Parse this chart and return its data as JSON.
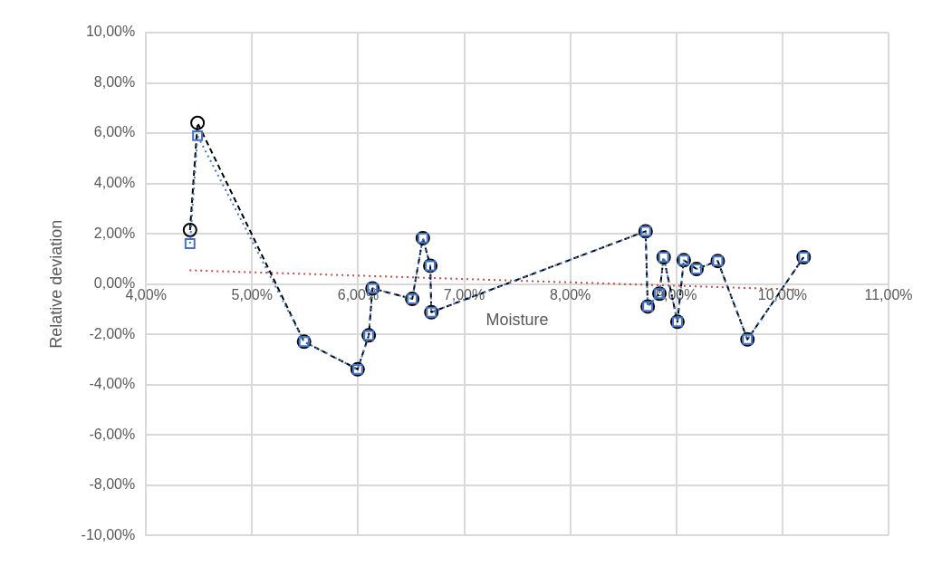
{
  "chart_data": {
    "type": "line",
    "xlabel": "Moisture",
    "ylabel": "Relative deviation",
    "grid": true,
    "legend": false,
    "x": [
      4.415,
      4.486,
      5.49,
      5.995,
      6.1,
      6.135,
      6.51,
      6.61,
      6.68,
      6.69,
      8.71,
      8.73,
      8.84,
      8.88,
      9.01,
      9.07,
      9.19,
      9.39,
      9.67,
      10.2
    ],
    "xlim": [
      4,
      11
    ],
    "xticks": [
      {
        "value": 4,
        "label": "4,00%"
      },
      {
        "value": 5,
        "label": "5,00%"
      },
      {
        "value": 6,
        "label": "6,00%"
      },
      {
        "value": 7,
        "label": "7,00%"
      },
      {
        "value": 8,
        "label": "8,00%"
      },
      {
        "value": 9,
        "label": "9,00%"
      },
      {
        "value": 10,
        "label": "10,00%"
      },
      {
        "value": 11,
        "label": "11,00%"
      }
    ],
    "ylim": [
      -10,
      10
    ],
    "yticks": [
      {
        "value": -10,
        "label": "-10,00%"
      },
      {
        "value": -8,
        "label": "-8,00%"
      },
      {
        "value": -6,
        "label": "-6,00%"
      },
      {
        "value": -4,
        "label": "-4,00%"
      },
      {
        "value": -2,
        "label": "-2,00%"
      },
      {
        "value": 0,
        "label": "0,00%"
      },
      {
        "value": 2,
        "label": "2,00%"
      },
      {
        "value": 4,
        "label": "4,00%"
      },
      {
        "value": 6,
        "label": "6,00%"
      },
      {
        "value": 8,
        "label": "8,00%"
      },
      {
        "value": 10,
        "label": "10,00%"
      }
    ],
    "series": [
      {
        "color": "#4472c4",
        "marker": "square",
        "line_style": "dotted",
        "values": [
          1.61,
          5.9,
          -2.29,
          -3.39,
          -2.04,
          -0.17,
          -0.59,
          1.83,
          0.73,
          -1.12,
          2.1,
          -0.89,
          -0.38,
          1.07,
          -1.5,
          0.95,
          0.6,
          0.92,
          -2.2,
          1.07
        ]
      },
      {
        "color": "#000000",
        "marker": "circle",
        "line_style": "dashed",
        "values": [
          2.15,
          6.41,
          -2.29,
          -3.39,
          -2.04,
          -0.17,
          -0.59,
          1.83,
          0.73,
          -1.12,
          2.1,
          -0.89,
          -0.38,
          1.07,
          -1.5,
          0.95,
          0.6,
          0.92,
          -2.2,
          1.07
        ]
      },
      {
        "type": "line",
        "color": "#c0504d",
        "marker": "none",
        "line_style": "dotted",
        "x": [
          4.41,
          10.15
        ],
        "values": [
          0.55,
          -0.22
        ]
      }
    ]
  }
}
